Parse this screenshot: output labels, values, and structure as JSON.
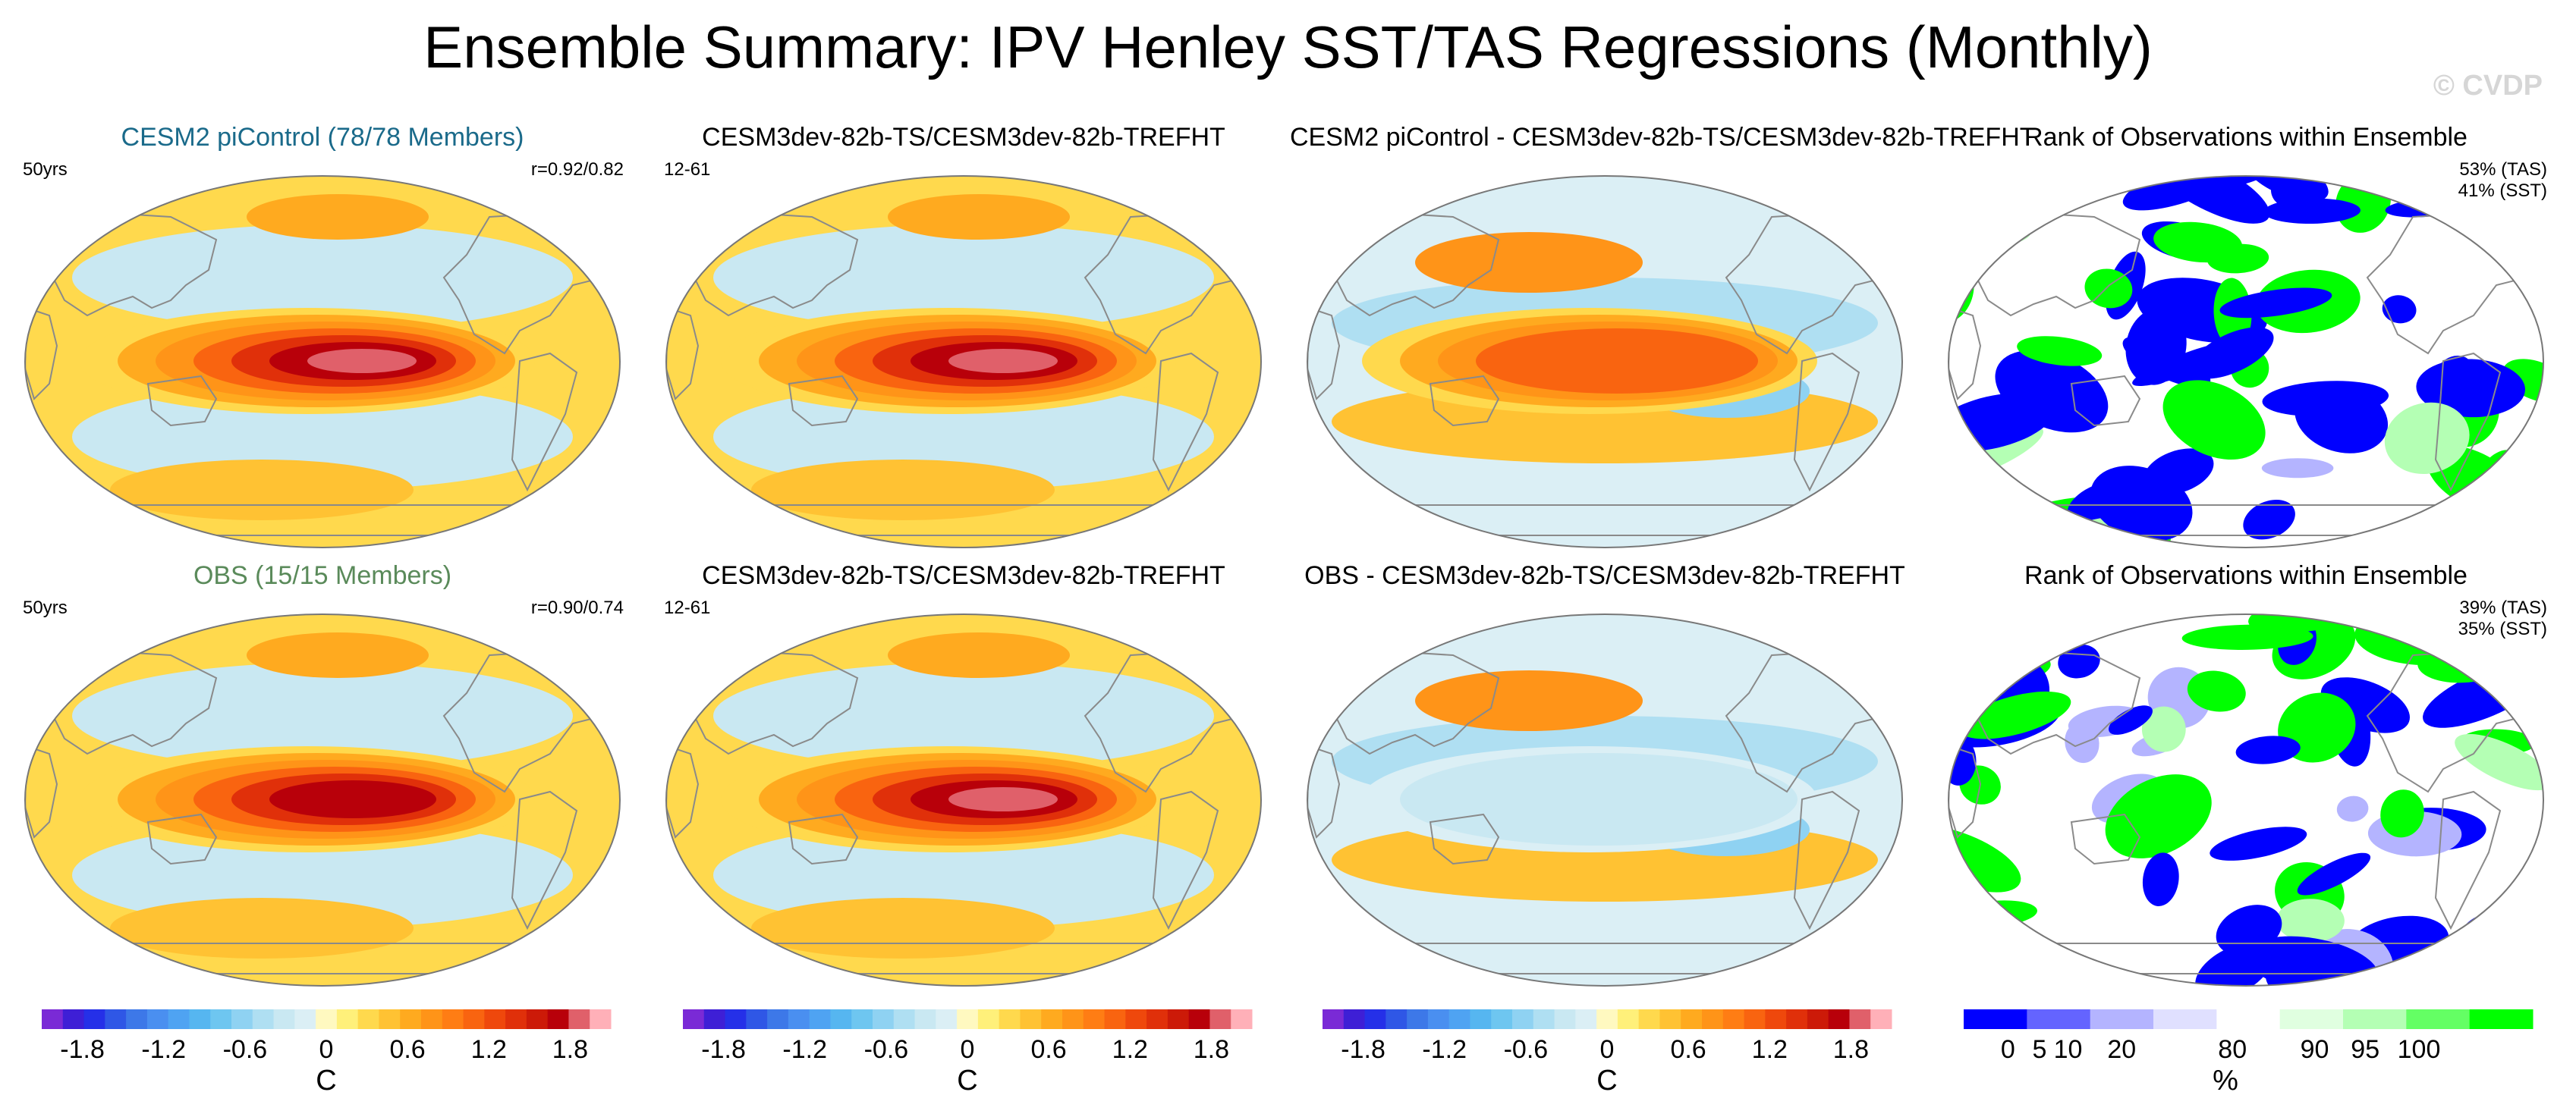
{
  "title": "Ensemble Summary: IPV Henley SST/TAS Regressions (Monthly)",
  "watermark": "© CVDP",
  "rows": [
    {
      "panels": [
        {
          "title": "CESM2 piControl (78/78 Members)",
          "title_color": "#1a6a8a",
          "left_note": "50yrs",
          "right_note": [
            "r=0.92/0.82"
          ],
          "kind": "regression"
        },
        {
          "title": "CESM3dev-82b-TS/CESM3dev-82b-TREFHT",
          "title_color": "#000000",
          "left_note": "12-61",
          "right_note": [],
          "kind": "regression"
        },
        {
          "title": "CESM2 piControl - CESM3dev-82b-TS/CESM3dev-82b-TREFHT",
          "title_color": "#000000",
          "left_note": "",
          "right_note": [],
          "kind": "difference"
        },
        {
          "title": "Rank of Observations within Ensemble",
          "title_color": "#000000",
          "left_note": "",
          "right_note": [
            "53% (TAS)",
            "41% (SST)"
          ],
          "kind": "rank"
        }
      ]
    },
    {
      "panels": [
        {
          "title": "OBS (15/15 Members)",
          "title_color": "#5a8a5a",
          "left_note": "50yrs",
          "right_note": [
            "r=0.90/0.74"
          ],
          "kind": "regression"
        },
        {
          "title": "CESM3dev-82b-TS/CESM3dev-82b-TREFHT",
          "title_color": "#000000",
          "left_note": "12-61",
          "right_note": [],
          "kind": "regression"
        },
        {
          "title": "OBS - CESM3dev-82b-TS/CESM3dev-82b-TREFHT",
          "title_color": "#000000",
          "left_note": "",
          "right_note": [],
          "kind": "difference"
        },
        {
          "title": "Rank of Observations within Ensemble",
          "title_color": "#000000",
          "left_note": "",
          "right_note": [
            "39% (TAS)",
            "35% (SST)"
          ],
          "kind": "rank"
        }
      ]
    }
  ],
  "colorbars": [
    {
      "units": "C",
      "ticks": [
        "-1.8",
        "-1.2",
        "-0.6",
        "0",
        "0.6",
        "1.2",
        "1.8"
      ]
    },
    {
      "units": "C",
      "ticks": [
        "-1.8",
        "-1.2",
        "-0.6",
        "0",
        "0.6",
        "1.2",
        "1.8"
      ]
    },
    {
      "units": "C",
      "ticks": [
        "-1.8",
        "-1.2",
        "-0.6",
        "0",
        "0.6",
        "1.2",
        "1.8"
      ]
    },
    {
      "units": "%",
      "ticks": [
        "0",
        "5",
        "10",
        "20",
        "80",
        "90",
        "95",
        "100"
      ]
    }
  ],
  "chart_data": {
    "type": "heatmap",
    "title": "Ensemble Summary: IPV Henley SST/TAS Regressions (Monthly)",
    "regression_colorbar": {
      "units": "C",
      "range": [
        -2.1,
        2.1
      ],
      "step": 0.15,
      "colors": [
        "#7a2ad6",
        "#3e1fd6",
        "#2530e8",
        "#2f57e6",
        "#3d78e8",
        "#4a8ff0",
        "#4fa3f2",
        "#56b6f0",
        "#6ec6f0",
        "#8fd2f2",
        "#afdff2",
        "#c9e8f2",
        "#dbeff5",
        "#fff9c0",
        "#fff07a",
        "#ffd94d",
        "#ffc233",
        "#ffaa1f",
        "#ff9418",
        "#ff7d14",
        "#f96410",
        "#ef480c",
        "#e0300a",
        "#cc1a08",
        "#b8000a",
        "#e0606a",
        "#ffb0b8"
      ],
      "tick_labels": [
        "-1.8",
        "-1.2",
        "-0.6",
        "0",
        "0.6",
        "1.2",
        "1.8"
      ]
    },
    "rank_colorbar": {
      "units": "%",
      "boundaries": [
        0,
        5,
        10,
        20,
        80,
        90,
        95,
        100
      ],
      "colors": [
        "#0000ff",
        "#6464ff",
        "#b4b4ff",
        "#e0e0ff",
        "#ffffff",
        "#e0ffe0",
        "#b4ffb4",
        "#64ff64",
        "#00ff00"
      ]
    },
    "panels": [
      {
        "row": 1,
        "col": 1,
        "name": "CESM2 piControl (78/78 Members)",
        "period": "50yrs",
        "pattern_correlation": "r=0.92/0.82",
        "nino_peak_C": 1.8
      },
      {
        "row": 1,
        "col": 2,
        "name": "CESM3dev-82b-TS/CESM3dev-82b-TREFHT",
        "period": "12-61",
        "nino_peak_C": 1.8
      },
      {
        "row": 1,
        "col": 3,
        "name": "CESM2 piControl - CESM3dev-82b-TS/CESM3dev-82b-TREFHT",
        "nino_peak_C": 0.9
      },
      {
        "row": 1,
        "col": 4,
        "name": "Rank of Observations within Ensemble",
        "tas_pct": 53,
        "sst_pct": 41
      },
      {
        "row": 2,
        "col": 1,
        "name": "OBS (15/15 Members)",
        "period": "50yrs",
        "pattern_correlation": "r=0.90/0.74",
        "nino_peak_C": 1.5
      },
      {
        "row": 2,
        "col": 2,
        "name": "CESM3dev-82b-TS/CESM3dev-82b-TREFHT",
        "period": "12-61",
        "nino_peak_C": 1.8
      },
      {
        "row": 2,
        "col": 3,
        "name": "OBS - CESM3dev-82b-TS/CESM3dev-82b-TREFHT",
        "nino_peak_C": -0.6
      },
      {
        "row": 2,
        "col": 4,
        "name": "Rank of Observations within Ensemble",
        "tas_pct": 39,
        "sst_pct": 35
      }
    ]
  }
}
